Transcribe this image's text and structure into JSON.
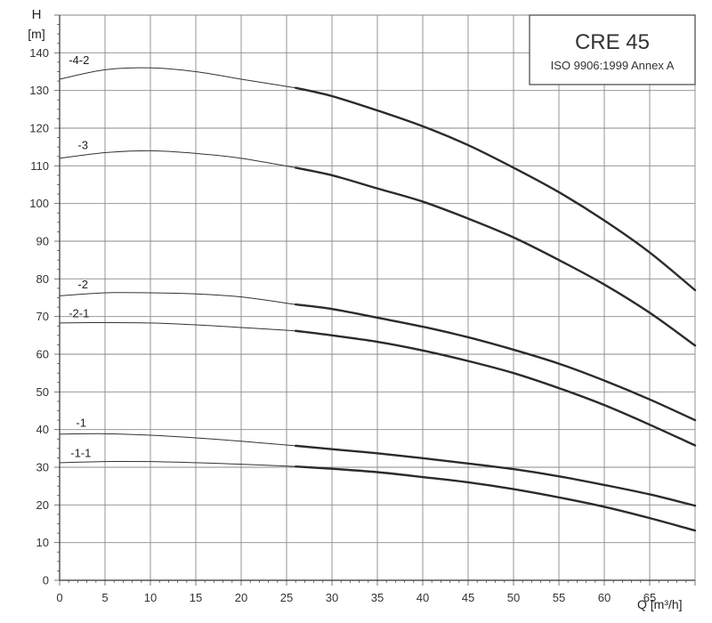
{
  "chart_data": {
    "type": "line",
    "title": "CRE 45",
    "subtitle": "ISO 9906:1999 Annex A",
    "y_axis_letter": "H",
    "y_axis_unit": "[m]",
    "x_axis_label": "Q [m³/h]",
    "xlim": [
      0,
      70
    ],
    "ylim": [
      0,
      150
    ],
    "x_ticks": [
      0,
      5,
      10,
      15,
      20,
      25,
      30,
      35,
      40,
      45,
      50,
      55,
      60,
      65
    ],
    "x_tick_labels": [
      "0",
      "5",
      "10",
      "15",
      "20",
      "25",
      "30",
      "35",
      "40",
      "45",
      "50",
      "55",
      "60",
      "65"
    ],
    "y_ticks": [
      0,
      10,
      20,
      30,
      40,
      50,
      60,
      70,
      80,
      90,
      100,
      110,
      120,
      130,
      140
    ],
    "y_tick_labels": [
      "0",
      "10",
      "20",
      "30",
      "40",
      "50",
      "60",
      "70",
      "80",
      "90",
      "100",
      "110",
      "120",
      "130",
      "140"
    ],
    "grid": true,
    "operating_range_start_q": 26,
    "series": [
      {
        "name": "-4-2",
        "label_at": [
          1,
          137
        ],
        "x": [
          0,
          5,
          10,
          15,
          20,
          26,
          30,
          35,
          40,
          45,
          50,
          55,
          60,
          65,
          70
        ],
        "y": [
          133,
          135.5,
          136,
          135,
          133,
          130.7,
          128.5,
          124.7,
          120.5,
          115.5,
          109.5,
          103,
          95.5,
          87,
          77
        ]
      },
      {
        "name": "-3",
        "label_at": [
          2,
          114.5
        ],
        "x": [
          0,
          5,
          10,
          15,
          20,
          26,
          30,
          35,
          40,
          45,
          50,
          55,
          60,
          65,
          70
        ],
        "y": [
          112,
          113.5,
          114,
          113.3,
          112,
          109.5,
          107.5,
          104,
          100.5,
          96,
          91,
          85,
          78.5,
          71,
          62.3
        ]
      },
      {
        "name": "-2",
        "label_at": [
          2,
          77.5
        ],
        "x": [
          0,
          5,
          10,
          15,
          20,
          26,
          30,
          35,
          40,
          45,
          50,
          55,
          60,
          65,
          70
        ],
        "y": [
          75.5,
          76.3,
          76.3,
          76,
          75.2,
          73.2,
          72,
          69.7,
          67.3,
          64.5,
          61.2,
          57.5,
          53,
          48,
          42.5
        ]
      },
      {
        "name": "-2-1",
        "label_at": [
          1,
          69.8
        ],
        "x": [
          0,
          5,
          10,
          15,
          20,
          26,
          30,
          35,
          40,
          45,
          50,
          55,
          60,
          65,
          70
        ],
        "y": [
          68.3,
          68.4,
          68.3,
          67.8,
          67.1,
          66.2,
          65,
          63.3,
          61,
          58.2,
          55,
          51,
          46.5,
          41.3,
          35.8
        ]
      },
      {
        "name": "-1",
        "label_at": [
          1.8,
          40.8
        ],
        "x": [
          0,
          5,
          10,
          15,
          20,
          26,
          30,
          35,
          40,
          45,
          50,
          55,
          60,
          65,
          70
        ],
        "y": [
          38.8,
          38.9,
          38.5,
          37.8,
          36.9,
          35.7,
          34.8,
          33.7,
          32.4,
          31,
          29.5,
          27.6,
          25.3,
          22.8,
          19.8
        ]
      },
      {
        "name": "-1-1",
        "label_at": [
          1.2,
          32.7
        ],
        "x": [
          0,
          5,
          10,
          15,
          20,
          26,
          30,
          35,
          40,
          45,
          50,
          55,
          60,
          65,
          70
        ],
        "y": [
          31.2,
          31.5,
          31.5,
          31.2,
          30.8,
          30.2,
          29.6,
          28.7,
          27.4,
          26,
          24.2,
          22,
          19.5,
          16.5,
          13.2
        ]
      }
    ]
  }
}
